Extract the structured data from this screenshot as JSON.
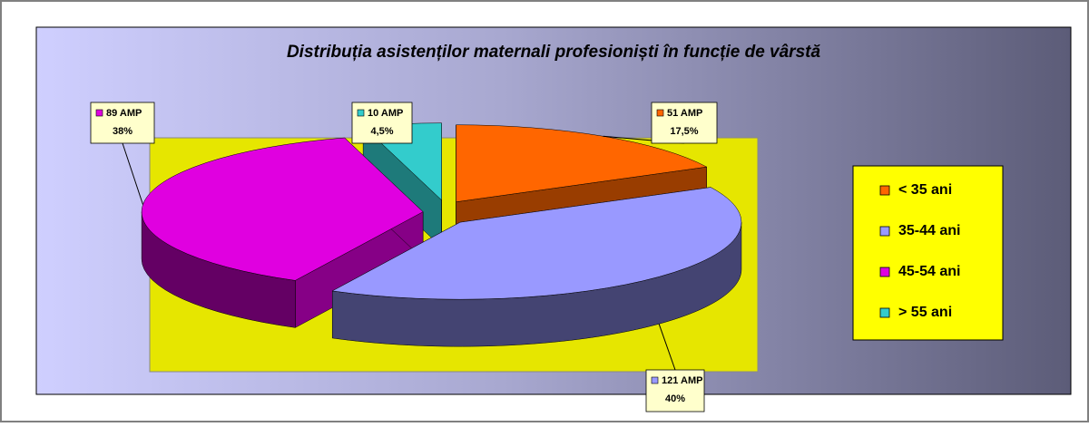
{
  "chart_data": {
    "type": "pie3d",
    "title": "Distribuția asistenților maternali profesioniști în funcție de vârstă",
    "categories": [
      "< 35 ani",
      "35-44 ani",
      "45-54 ani",
      "> 55 ani"
    ],
    "values": [
      17.5,
      40,
      38,
      4.5
    ],
    "value_labels": [
      "17,5%",
      "40%",
      "38%",
      "4,5%"
    ],
    "counts": [
      51,
      121,
      89,
      10
    ],
    "count_labels": [
      "51 AMP",
      "121 AMP",
      "89 AMP",
      "10 AMP"
    ],
    "colors": [
      "#ff6600",
      "#9999ff",
      "#e000e0",
      "#33cccc"
    ],
    "legend": "right"
  }
}
